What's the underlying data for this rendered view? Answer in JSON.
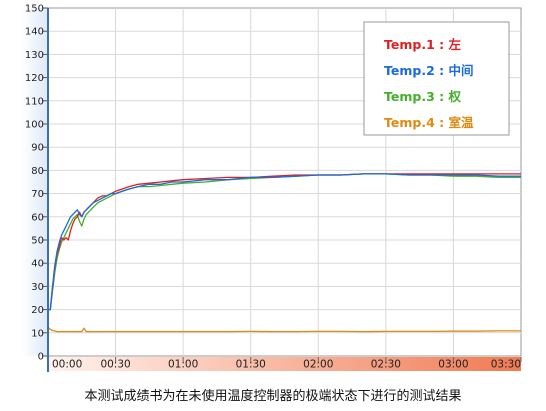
{
  "caption": "本测试成绩书为在未使用温度控制器的极端状态下进行的测试结果",
  "chart_data": {
    "type": "line",
    "title": "",
    "xlabel": "",
    "ylabel": "",
    "x_unit": "hh:mm",
    "xlim": [
      0,
      210
    ],
    "ylim": [
      0,
      150
    ],
    "grid": true,
    "legend_position": "top-right",
    "y_ticks": [
      "0",
      "10",
      "20",
      "30",
      "40",
      "50",
      "60",
      "70",
      "80",
      "90",
      "100",
      "110",
      "120",
      "130",
      "140",
      "150"
    ],
    "x_ticks": [
      "00:00",
      "00:30",
      "01:00",
      "01:30",
      "02:00",
      "02:30",
      "03:00",
      "03:30"
    ],
    "series": [
      {
        "name": "Temp.1 : 左",
        "color": "#e02020",
        "x": [
          0,
          1,
          2,
          3,
          4,
          5,
          6,
          7,
          8,
          9,
          10,
          11,
          12,
          13,
          14,
          15,
          16,
          17,
          18,
          19,
          20,
          22,
          24,
          26,
          28,
          30,
          33,
          36,
          40,
          45,
          50,
          55,
          60,
          70,
          80,
          90,
          100,
          110,
          120,
          130,
          140,
          150,
          160,
          170,
          180,
          190,
          200,
          210
        ],
        "y": [
          20,
          20,
          29,
          38,
          44,
          47,
          51,
          50,
          51,
          50,
          54,
          57,
          59,
          60,
          62,
          60,
          62,
          63,
          64,
          65,
          66,
          68,
          69,
          69,
          70,
          71,
          72,
          73,
          74,
          74.5,
          75,
          75.5,
          76,
          76.5,
          77,
          77,
          77.5,
          78,
          78,
          78,
          78.5,
          78.5,
          78.5,
          78.5,
          78.5,
          78.5,
          78.5,
          78.5
        ]
      },
      {
        "name": "Temp.2 : 中间",
        "color": "#1a6be0",
        "x": [
          0,
          1,
          2,
          3,
          4,
          5,
          6,
          7,
          8,
          9,
          10,
          11,
          12,
          13,
          14,
          15,
          16,
          17,
          18,
          19,
          20,
          22,
          24,
          26,
          28,
          30,
          33,
          36,
          40,
          45,
          50,
          55,
          60,
          70,
          80,
          90,
          100,
          110,
          120,
          130,
          140,
          150,
          160,
          170,
          180,
          190,
          200,
          210
        ],
        "y": [
          20,
          20,
          30,
          39,
          45,
          49,
          52,
          54,
          56,
          58,
          60,
          61,
          62,
          63,
          61,
          60,
          62,
          63,
          64,
          65,
          66,
          67,
          68,
          69,
          70,
          70,
          71,
          72,
          73,
          74,
          74,
          75,
          75,
          76,
          76,
          77,
          77,
          77.5,
          78,
          78,
          78.5,
          78.5,
          78,
          78,
          78,
          78,
          77.5,
          77.5
        ]
      },
      {
        "name": "Temp.3 : 权",
        "color": "#44b02a",
        "x": [
          0,
          1,
          2,
          3,
          4,
          5,
          6,
          7,
          8,
          9,
          10,
          11,
          12,
          13,
          14,
          15,
          16,
          17,
          18,
          19,
          20,
          22,
          24,
          26,
          28,
          30,
          33,
          36,
          40,
          45,
          50,
          55,
          60,
          70,
          80,
          90,
          100,
          110,
          120,
          130,
          140,
          150,
          160,
          170,
          180,
          190,
          200,
          210
        ],
        "y": [
          20,
          20,
          28,
          36,
          42,
          46,
          49,
          51,
          53,
          55,
          57,
          59,
          60,
          61,
          58,
          56,
          59,
          61,
          62,
          63,
          64,
          66,
          67,
          68,
          69,
          70,
          71,
          72,
          73,
          73,
          73.5,
          74,
          74.5,
          75,
          76,
          76.5,
          77,
          77.5,
          78,
          78,
          78.5,
          78.5,
          78,
          78,
          77.5,
          77.5,
          77,
          77
        ]
      },
      {
        "name": "Temp.4 : 室温",
        "color": "#e08a10",
        "x": [
          0,
          1,
          2,
          3,
          4,
          5,
          10,
          15,
          16,
          17,
          20,
          30,
          40,
          50,
          60,
          70,
          80,
          90,
          100,
          110,
          120,
          130,
          140,
          150,
          160,
          170,
          180,
          190,
          200,
          210
        ],
        "y": [
          12.5,
          11.5,
          11,
          10.8,
          10.5,
          10.5,
          10.5,
          10.5,
          12,
          10.5,
          10.5,
          10.5,
          10.5,
          10.5,
          10.5,
          10.5,
          10.5,
          10.6,
          10.5,
          10.5,
          10.6,
          10.6,
          10.5,
          10.6,
          10.6,
          10.6,
          10.7,
          10.7,
          10.8,
          10.8
        ]
      }
    ]
  }
}
